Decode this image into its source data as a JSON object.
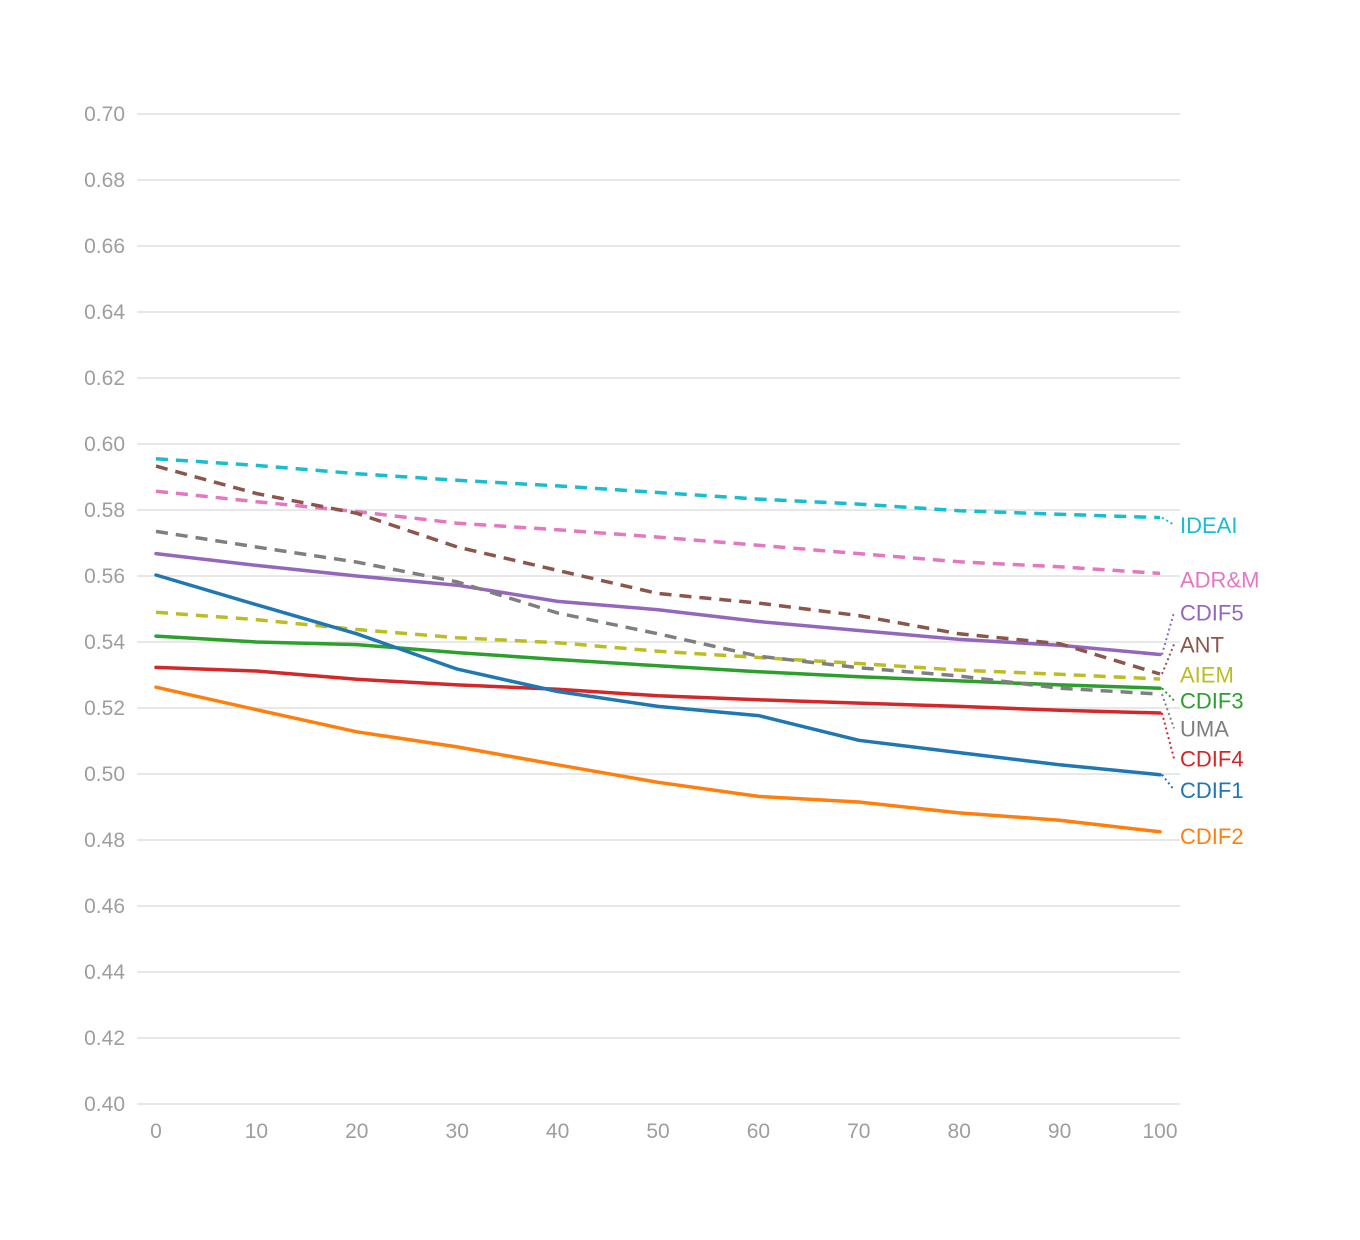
{
  "chart_data": {
    "type": "line",
    "title": "",
    "xlabel": "",
    "ylabel": "",
    "x": [
      0,
      10,
      20,
      30,
      40,
      50,
      60,
      70,
      80,
      90,
      100
    ],
    "xlim": [
      0,
      100
    ],
    "ylim": [
      0.4,
      0.7
    ],
    "x_ticks": [
      "0",
      "10",
      "20",
      "30",
      "40",
      "50",
      "60",
      "70",
      "80",
      "90",
      "100"
    ],
    "y_ticks": [
      "0.40",
      "0.42",
      "0.44",
      "0.46",
      "0.48",
      "0.50",
      "0.52",
      "0.54",
      "0.56",
      "0.58",
      "0.60",
      "0.62",
      "0.64",
      "0.66",
      "0.68",
      "0.70"
    ],
    "y_tick_values": [
      0.4,
      0.42,
      0.44,
      0.46,
      0.48,
      0.5,
      0.52,
      0.54,
      0.56,
      0.58,
      0.6,
      0.62,
      0.64,
      0.66,
      0.68,
      0.7
    ],
    "grid": "horizontal",
    "legend": "direct-labels-right",
    "series": [
      {
        "name": "IDEAI",
        "color": "#17becf",
        "dash": true,
        "label_value": 0.5755,
        "values": [
          0.5955,
          0.5935,
          0.591,
          0.589,
          0.5873,
          0.5853,
          0.5833,
          0.5818,
          0.5798,
          0.5787,
          0.5777
        ]
      },
      {
        "name": "ADR&M",
        "color": "#e377c2",
        "dash": true,
        "label_value": 0.559,
        "values": [
          0.5857,
          0.5825,
          0.5795,
          0.576,
          0.574,
          0.5718,
          0.5693,
          0.5668,
          0.5643,
          0.5628,
          0.5608
        ]
      },
      {
        "name": "CDIF5",
        "color": "#9467bd",
        "dash": false,
        "label_value": 0.549,
        "values": [
          0.5668,
          0.5632,
          0.56,
          0.5572,
          0.5523,
          0.5498,
          0.5462,
          0.5435,
          0.5408,
          0.539,
          0.5362
        ]
      },
      {
        "name": "ANT",
        "color": "#8c564b",
        "dash": true,
        "label_value": 0.5393,
        "values": [
          0.5933,
          0.585,
          0.579,
          0.5688,
          0.5617,
          0.5547,
          0.5518,
          0.548,
          0.5425,
          0.5395,
          0.5303
        ]
      },
      {
        "name": "AIEM",
        "color": "#bcbd22",
        "dash": true,
        "label_value": 0.5302,
        "values": [
          0.549,
          0.5468,
          0.5438,
          0.5413,
          0.5398,
          0.5372,
          0.5353,
          0.5335,
          0.5315,
          0.5302,
          0.5288
        ]
      },
      {
        "name": "CDIF3",
        "color": "#2ca02c",
        "dash": false,
        "label_value": 0.5223,
        "values": [
          0.5418,
          0.54,
          0.5392,
          0.5368,
          0.5347,
          0.5328,
          0.531,
          0.5295,
          0.5282,
          0.527,
          0.526
        ]
      },
      {
        "name": "UMA",
        "color": "#7f7f7f",
        "dash": true,
        "label_value": 0.5138,
        "values": [
          0.5735,
          0.5688,
          0.5642,
          0.5582,
          0.5488,
          0.5425,
          0.5357,
          0.5322,
          0.5297,
          0.526,
          0.5242
        ]
      },
      {
        "name": "CDIF4",
        "color": "#d62728",
        "dash": false,
        "label_value": 0.5047,
        "values": [
          0.5323,
          0.5312,
          0.5287,
          0.527,
          0.5257,
          0.5237,
          0.5225,
          0.5215,
          0.5205,
          0.5193,
          0.5185
        ]
      },
      {
        "name": "CDIF1",
        "color": "#1f77b4",
        "dash": false,
        "label_value": 0.4952,
        "values": [
          0.5603,
          0.5513,
          0.5425,
          0.5318,
          0.525,
          0.5205,
          0.5177,
          0.5102,
          0.5065,
          0.5028,
          0.4998
        ]
      },
      {
        "name": "CDIF2",
        "color": "#ff7f0e",
        "dash": false,
        "label_value": 0.4812,
        "values": [
          0.5263,
          0.5195,
          0.5128,
          0.5082,
          0.5028,
          0.4975,
          0.4932,
          0.4915,
          0.4882,
          0.486,
          0.4825
        ]
      }
    ]
  }
}
